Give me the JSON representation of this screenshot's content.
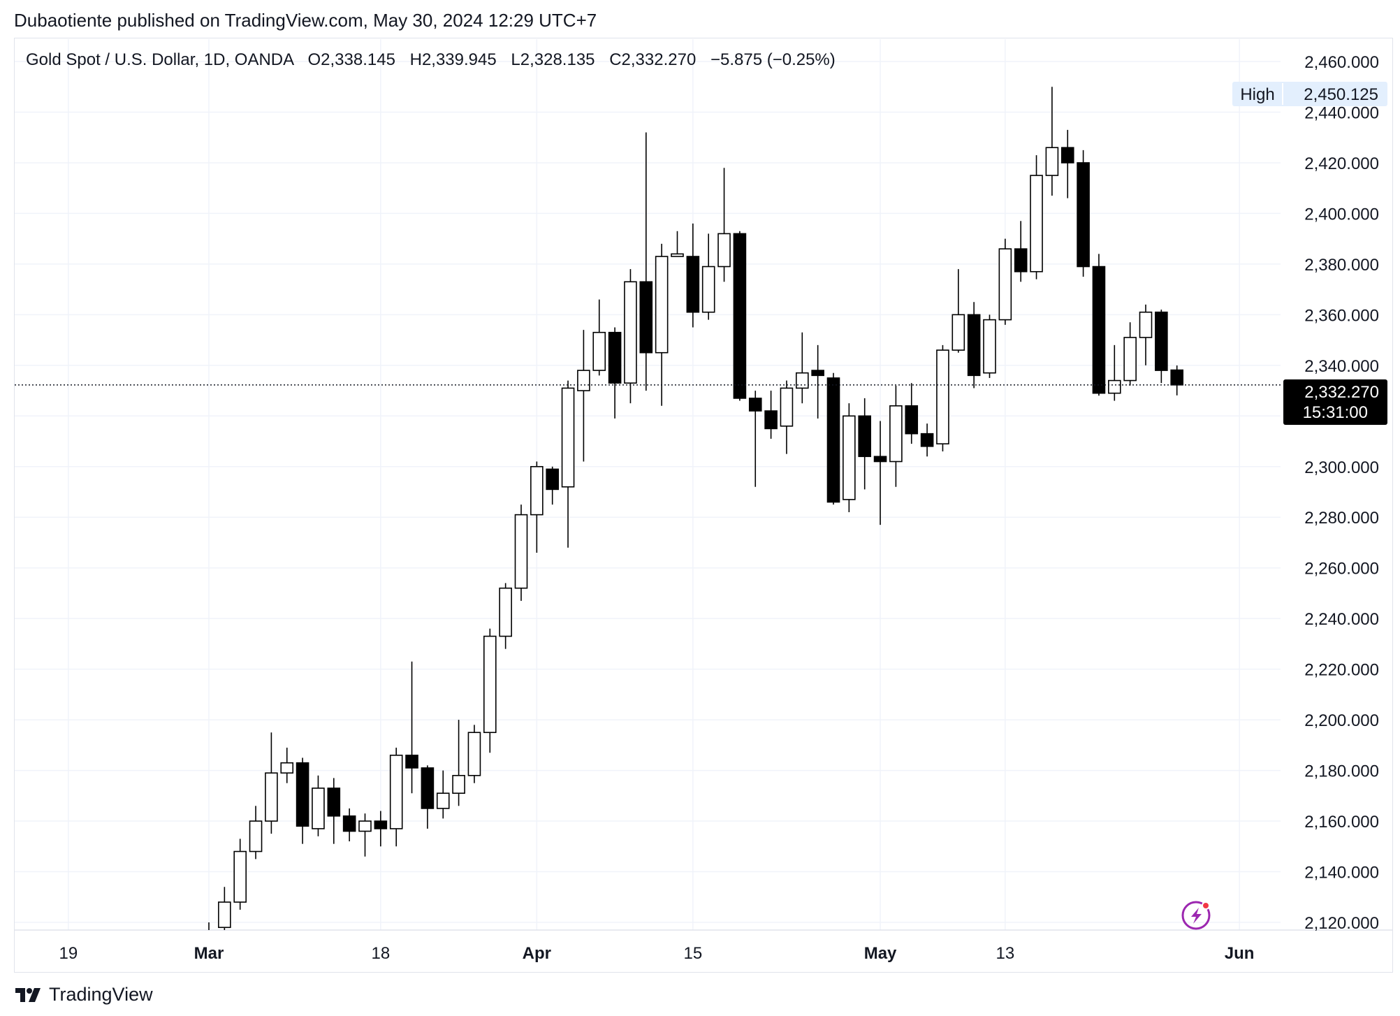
{
  "header": {
    "published": "Dubaotiente published on TradingView.com, May 30, 2024 12:29 UTC+7",
    "legend_symbol": "Gold Spot / U.S. Dollar, 1D, OANDA",
    "open": "O2,338.145",
    "high": "H2,339.945",
    "low": "L2,328.135",
    "close": "C2,332.270",
    "change": "−5.875 (−0.25%)"
  },
  "badges": {
    "high_label": "High",
    "high_value": "2,450.125",
    "last_value": "2,332.270",
    "countdown": "15:31:00"
  },
  "footer": {
    "brand": "TradingView",
    "logo_icon": "tradingview-logo-icon"
  },
  "colors": {
    "up_fill": "#ffffff",
    "down_fill": "#000000",
    "wick": "#000000",
    "grid": "#f0f3fa",
    "accent_badge": "#e3effd",
    "last_badge": "#000000",
    "bolt": "#9c27b0"
  },
  "chart_data": {
    "type": "candlestick",
    "y_ticks": [
      "2,120.000",
      "2,140.000",
      "2,160.000",
      "2,180.000",
      "2,200.000",
      "2,220.000",
      "2,240.000",
      "2,260.000",
      "2,280.000",
      "2,300.000",
      "2,320.000",
      "2,340.000",
      "2,360.000",
      "2,380.000",
      "2,400.000",
      "2,420.000",
      "2,440.000",
      "2,460.000"
    ],
    "ylim": [
      2118,
      2466
    ],
    "x_ticks": [
      {
        "label": "19",
        "bold": false,
        "index": -9
      },
      {
        "label": "Mar",
        "bold": true,
        "index": 0
      },
      {
        "label": "18",
        "bold": false,
        "index": 11
      },
      {
        "label": "Apr",
        "bold": true,
        "index": 21
      },
      {
        "label": "15",
        "bold": false,
        "index": 31
      },
      {
        "label": "May",
        "bold": true,
        "index": 43
      },
      {
        "label": "13",
        "bold": false,
        "index": 51
      },
      {
        "label": "Jun",
        "bold": true,
        "index": 66
      }
    ],
    "last_price": 2332.27,
    "candles": [
      {
        "o": 2090,
        "h": 2120,
        "l": 2085,
        "c": 2105
      },
      {
        "o": 2118,
        "h": 2134,
        "l": 2110,
        "c": 2128
      },
      {
        "o": 2128,
        "h": 2153,
        "l": 2125,
        "c": 2148
      },
      {
        "o": 2148,
        "h": 2166,
        "l": 2145,
        "c": 2160
      },
      {
        "o": 2160,
        "h": 2195,
        "l": 2155,
        "c": 2179
      },
      {
        "o": 2179,
        "h": 2189,
        "l": 2175,
        "c": 2183
      },
      {
        "o": 2183,
        "h": 2185,
        "l": 2151,
        "c": 2158
      },
      {
        "o": 2157,
        "h": 2178,
        "l": 2154,
        "c": 2173
      },
      {
        "o": 2173,
        "h": 2177,
        "l": 2151,
        "c": 2162
      },
      {
        "o": 2162,
        "h": 2165,
        "l": 2152,
        "c": 2156
      },
      {
        "o": 2156,
        "h": 2163,
        "l": 2146,
        "c": 2160
      },
      {
        "o": 2160,
        "h": 2164,
        "l": 2150,
        "c": 2157
      },
      {
        "o": 2157,
        "h": 2189,
        "l": 2150,
        "c": 2186
      },
      {
        "o": 2186,
        "h": 2223,
        "l": 2171,
        "c": 2181
      },
      {
        "o": 2181,
        "h": 2182,
        "l": 2157,
        "c": 2165
      },
      {
        "o": 2165,
        "h": 2180,
        "l": 2161,
        "c": 2171
      },
      {
        "o": 2171,
        "h": 2200,
        "l": 2166,
        "c": 2178
      },
      {
        "o": 2178,
        "h": 2198,
        "l": 2175,
        "c": 2195
      },
      {
        "o": 2195,
        "h": 2236,
        "l": 2187,
        "c": 2233
      },
      {
        "o": 2233,
        "h": 2254,
        "l": 2228,
        "c": 2252
      },
      {
        "o": 2252,
        "h": 2285,
        "l": 2247,
        "c": 2281
      },
      {
        "o": 2281,
        "h": 2302,
        "l": 2266,
        "c": 2300
      },
      {
        "o": 2299,
        "h": 2300,
        "l": 2285,
        "c": 2291
      },
      {
        "o": 2292,
        "h": 2334,
        "l": 2268,
        "c": 2331
      },
      {
        "o": 2330,
        "h": 2354,
        "l": 2302,
        "c": 2338
      },
      {
        "o": 2338,
        "h": 2366,
        "l": 2336,
        "c": 2353
      },
      {
        "o": 2353,
        "h": 2355,
        "l": 2319,
        "c": 2333
      },
      {
        "o": 2333,
        "h": 2378,
        "l": 2325,
        "c": 2373
      },
      {
        "o": 2373,
        "h": 2432,
        "l": 2330,
        "c": 2345
      },
      {
        "o": 2345,
        "h": 2388,
        "l": 2324,
        "c": 2383
      },
      {
        "o": 2383,
        "h": 2393,
        "l": 2383,
        "c": 2384
      },
      {
        "o": 2383,
        "h": 2396,
        "l": 2355,
        "c": 2361
      },
      {
        "o": 2361,
        "h": 2392,
        "l": 2358,
        "c": 2379
      },
      {
        "o": 2379,
        "h": 2418,
        "l": 2373,
        "c": 2392
      },
      {
        "o": 2392,
        "h": 2393,
        "l": 2326,
        "c": 2327
      },
      {
        "o": 2327,
        "h": 2330,
        "l": 2292,
        "c": 2322
      },
      {
        "o": 2322,
        "h": 2330,
        "l": 2311,
        "c": 2315
      },
      {
        "o": 2316,
        "h": 2334,
        "l": 2305,
        "c": 2331
      },
      {
        "o": 2331,
        "h": 2353,
        "l": 2325,
        "c": 2337
      },
      {
        "o": 2338,
        "h": 2348,
        "l": 2319,
        "c": 2336
      },
      {
        "o": 2335,
        "h": 2337,
        "l": 2285,
        "c": 2286
      },
      {
        "o": 2287,
        "h": 2325,
        "l": 2282,
        "c": 2320
      },
      {
        "o": 2320,
        "h": 2327,
        "l": 2291,
        "c": 2304
      },
      {
        "o": 2304,
        "h": 2318,
        "l": 2277,
        "c": 2302
      },
      {
        "o": 2302,
        "h": 2332,
        "l": 2292,
        "c": 2324
      },
      {
        "o": 2324,
        "h": 2333,
        "l": 2309,
        "c": 2313
      },
      {
        "o": 2313,
        "h": 2317,
        "l": 2304,
        "c": 2308
      },
      {
        "o": 2309,
        "h": 2348,
        "l": 2306,
        "c": 2346
      },
      {
        "o": 2346,
        "h": 2378,
        "l": 2345,
        "c": 2360
      },
      {
        "o": 2360,
        "h": 2365,
        "l": 2331,
        "c": 2336
      },
      {
        "o": 2337,
        "h": 2360,
        "l": 2335,
        "c": 2358
      },
      {
        "o": 2358,
        "h": 2390,
        "l": 2356,
        "c": 2386
      },
      {
        "o": 2386,
        "h": 2397,
        "l": 2373,
        "c": 2377
      },
      {
        "o": 2377,
        "h": 2423,
        "l": 2374,
        "c": 2415
      },
      {
        "o": 2415,
        "h": 2450,
        "l": 2407,
        "c": 2426
      },
      {
        "o": 2426,
        "h": 2433,
        "l": 2406,
        "c": 2420
      },
      {
        "o": 2420,
        "h": 2425,
        "l": 2375,
        "c": 2379
      },
      {
        "o": 2379,
        "h": 2384,
        "l": 2328,
        "c": 2329
      },
      {
        "o": 2329,
        "h": 2348,
        "l": 2326,
        "c": 2334
      },
      {
        "o": 2334,
        "h": 2357,
        "l": 2332,
        "c": 2351
      },
      {
        "o": 2351,
        "h": 2364,
        "l": 2340,
        "c": 2361
      },
      {
        "o": 2361,
        "h": 2362,
        "l": 2333,
        "c": 2338
      },
      {
        "o": 2338.145,
        "h": 2339.945,
        "l": 2328.135,
        "c": 2332.27
      }
    ]
  }
}
